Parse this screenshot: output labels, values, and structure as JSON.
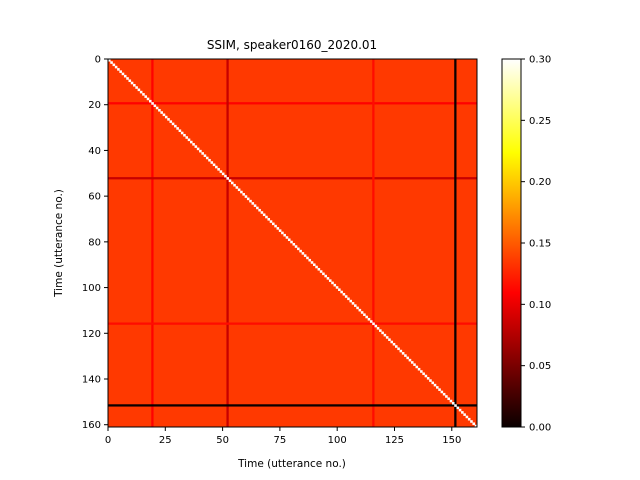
{
  "chart_data": {
    "type": "heatmap",
    "title": "SSIM, speaker0160_2020.01",
    "xlabel": "Time (utterance no.)",
    "ylabel": "Time (utterance no.)",
    "n": 162,
    "xlim": [
      0,
      161
    ],
    "ylim": [
      161,
      0
    ],
    "x_ticks": [
      0,
      25,
      50,
      75,
      100,
      125,
      150
    ],
    "y_ticks": [
      0,
      20,
      40,
      60,
      80,
      100,
      120,
      140,
      160
    ],
    "baseline_value": 0.135,
    "diagonal_value": 0.3,
    "low_similarity_rows": [
      {
        "index": 19,
        "value": 0.11
      },
      {
        "index": 52,
        "value": 0.085
      },
      {
        "index": 116,
        "value": 0.115
      },
      {
        "index": 152,
        "value": 0.0
      }
    ],
    "colorbar": {
      "colormap": "hot",
      "vmin": 0.0,
      "vmax": 0.3,
      "ticks": [
        "0.00",
        "0.05",
        "0.10",
        "0.15",
        "0.20",
        "0.25",
        "0.30"
      ]
    }
  }
}
